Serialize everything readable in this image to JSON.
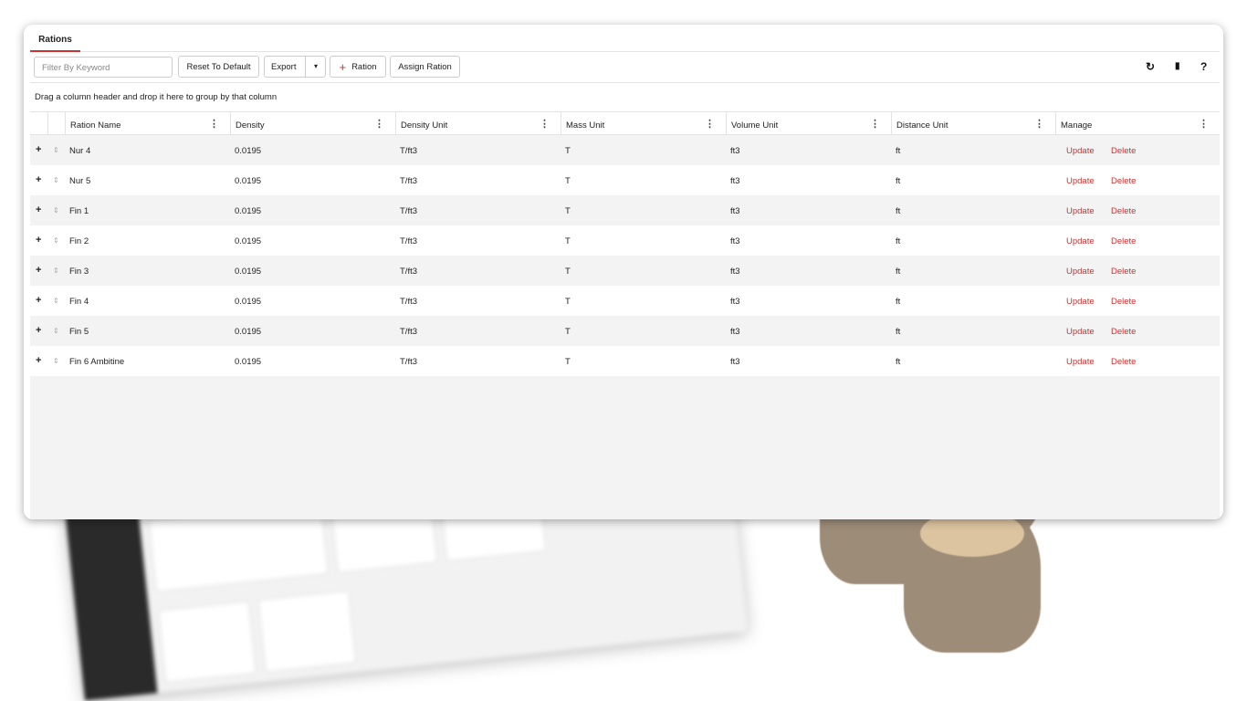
{
  "tabs": [
    {
      "label": "Rations",
      "active": true
    }
  ],
  "toolbar": {
    "filter_placeholder": "Filter By Keyword",
    "reset": "Reset To Default",
    "export": "Export",
    "export_caret": "▾",
    "add_icon": "+",
    "add_ration": "Ration",
    "assign": "Assign Ration",
    "refresh_icon": "↻",
    "file_icon": "▮",
    "help_icon": "?"
  },
  "group_hint": "Drag a column header and drop it here to group by that column",
  "columns": [
    "Ration Name",
    "Density",
    "Density Unit",
    "Mass Unit",
    "Volume Unit",
    "Distance Unit",
    "Manage"
  ],
  "rows": [
    {
      "name": "Nur 4",
      "density": "0.0195",
      "density_unit": "T/ft3",
      "mass_unit": "T",
      "volume_unit": "ft3",
      "distance_unit": "ft"
    },
    {
      "name": "Nur 5",
      "density": "0.0195",
      "density_unit": "T/ft3",
      "mass_unit": "T",
      "volume_unit": "ft3",
      "distance_unit": "ft"
    },
    {
      "name": "Fin 1",
      "density": "0.0195",
      "density_unit": "T/ft3",
      "mass_unit": "T",
      "volume_unit": "ft3",
      "distance_unit": "ft"
    },
    {
      "name": "Fin 2",
      "density": "0.0195",
      "density_unit": "T/ft3",
      "mass_unit": "T",
      "volume_unit": "ft3",
      "distance_unit": "ft"
    },
    {
      "name": "Fin 3",
      "density": "0.0195",
      "density_unit": "T/ft3",
      "mass_unit": "T",
      "volume_unit": "ft3",
      "distance_unit": "ft"
    },
    {
      "name": "Fin 4",
      "density": "0.0195",
      "density_unit": "T/ft3",
      "mass_unit": "T",
      "volume_unit": "ft3",
      "distance_unit": "ft"
    },
    {
      "name": "Fin 5",
      "density": "0.0195",
      "density_unit": "T/ft3",
      "mass_unit": "T",
      "volume_unit": "ft3",
      "distance_unit": "ft"
    },
    {
      "name": "Fin 6 Ambitine",
      "density": "0.0195",
      "density_unit": "T/ft3",
      "mass_unit": "T",
      "volume_unit": "ft3",
      "distance_unit": "ft"
    }
  ],
  "actions": {
    "update": "Update",
    "delete": "Delete",
    "expand": "+",
    "drag": "⇕",
    "menu": "⋮"
  },
  "colors": {
    "accent": "#d32f2f"
  }
}
